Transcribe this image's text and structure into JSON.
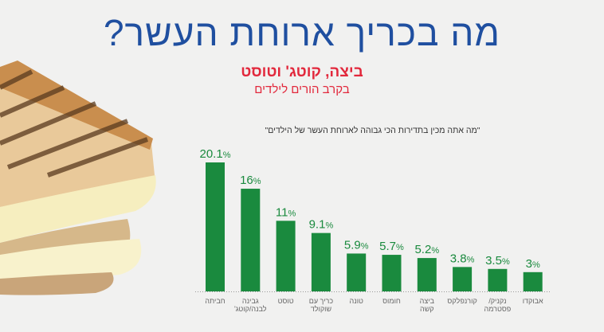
{
  "header": {
    "title": "מה בכריך ארוחת העשר?",
    "subtitle": "ביצה, קוטג' וטוסט",
    "subtitle2": "בקרב הורים לילדים"
  },
  "colors": {
    "title": "#1f4fa0",
    "subtitle": "#e2283c",
    "bars": "#1a8a3e"
  },
  "chart_data": {
    "type": "bar",
    "title": "\"מה אתה מכין בתדירות הכי גבוהה לארוחת העשר של הילדים\"",
    "unit": "%",
    "categories": [
      [
        "חביתה"
      ],
      [
        "גבינה",
        "לבנה/קוטג'"
      ],
      [
        "טוסט"
      ],
      [
        "כריך עם",
        "שוקולד"
      ],
      [
        "טונה"
      ],
      [
        "חומוס"
      ],
      [
        "ביצה",
        "קשה"
      ],
      [
        "קורנפלקס"
      ],
      [
        "נקניק/",
        "פסטרמה"
      ],
      [
        "אבוקדו"
      ]
    ],
    "values": [
      20.1,
      16,
      11,
      9.1,
      5.9,
      5.7,
      5.2,
      3.8,
      3.5,
      3
    ],
    "labels": [
      "20.1",
      "16",
      "11",
      "9.1",
      "5.9",
      "5.7",
      "5.2",
      "3.8",
      "3.5",
      "3"
    ],
    "ylim": [
      0,
      22
    ],
    "grid": false,
    "icon": "sandwich-illustration"
  }
}
